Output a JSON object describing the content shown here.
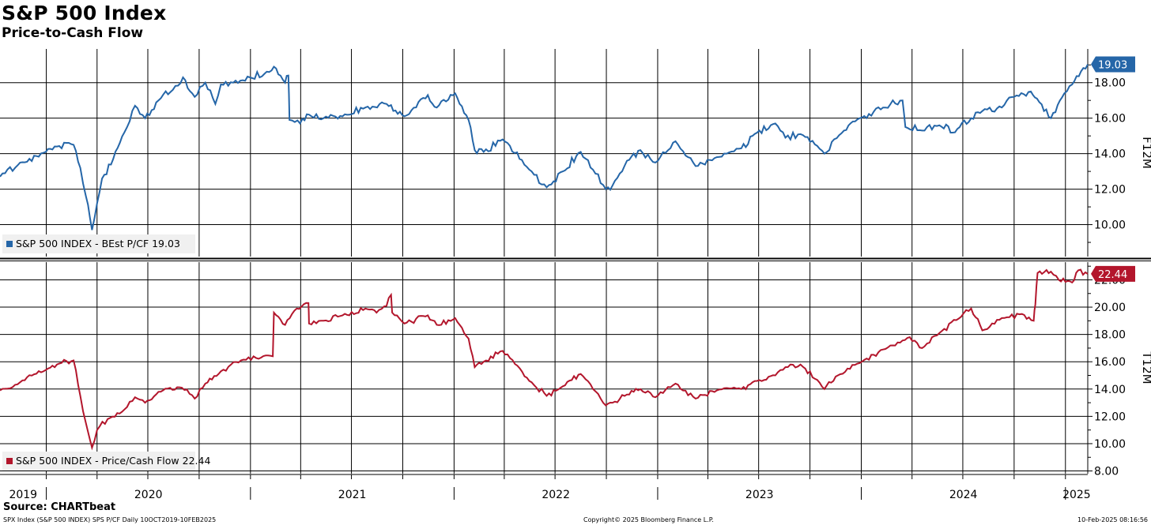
{
  "header": {
    "title": "S&P 500 Index",
    "subtitle": "Price-to-Cash Flow"
  },
  "footer": {
    "source": "Source: CHARTbeat",
    "left": "SPX Index (S&P 500 INDEX) SPS P/CF  Daily 10OCT2019-10FEB2025",
    "center": "Copyright© 2025 Bloomberg Finance L.P.",
    "right": "10-Feb-2025 08:16:56"
  },
  "chart_data": [
    {
      "type": "line",
      "panel": "top",
      "ylabel": "F12M",
      "ylim": [
        8.2,
        19.9
      ],
      "yticks": [
        "10.00",
        "12.00",
        "14.00",
        "16.00",
        "18.00"
      ],
      "color": "#2566a8",
      "legend": "S&P 500 INDEX - BEst P/CF 19.03",
      "last_value_label": "19.03",
      "series": [
        {
          "name": "S&P 500 INDEX - BEst P/CF",
          "points": [
            [
              "2019-10-10",
              12.7
            ],
            [
              "2019-11-15",
              13.5
            ],
            [
              "2019-12-31",
              14.1
            ],
            [
              "2020-01-20",
              14.4
            ],
            [
              "2020-02-19",
              14.5
            ],
            [
              "2020-03-02",
              13.2
            ],
            [
              "2020-03-12",
              11.6
            ],
            [
              "2020-03-23",
              9.7
            ],
            [
              "2020-04-01",
              11.2
            ],
            [
              "2020-04-10",
              12.6
            ],
            [
              "2020-04-30",
              13.7
            ],
            [
              "2020-05-20",
              15.2
            ],
            [
              "2020-06-08",
              16.7
            ],
            [
              "2020-06-26",
              16.0
            ],
            [
              "2020-07-20",
              17.0
            ],
            [
              "2020-08-15",
              17.6
            ],
            [
              "2020-09-02",
              18.3
            ],
            [
              "2020-09-23",
              17.2
            ],
            [
              "2020-10-12",
              18.0
            ],
            [
              "2020-10-30",
              16.8
            ],
            [
              "2020-11-09",
              17.9
            ],
            [
              "2020-12-01",
              18.0
            ],
            [
              "2020-12-31",
              18.3
            ],
            [
              "2021-01-26",
              18.5
            ],
            [
              "2021-02-12",
              18.9
            ],
            [
              "2021-03-04",
              18.0
            ],
            [
              "2021-03-10",
              18.4
            ],
            [
              "2021-03-12",
              15.9
            ],
            [
              "2021-03-31",
              15.7
            ],
            [
              "2021-04-16",
              16.2
            ],
            [
              "2021-05-12",
              16.0
            ],
            [
              "2021-06-15",
              16.1
            ],
            [
              "2021-07-26",
              16.6
            ],
            [
              "2021-09-02",
              16.8
            ],
            [
              "2021-10-04",
              16.1
            ],
            [
              "2021-11-15",
              17.3
            ],
            [
              "2021-12-01",
              16.6
            ],
            [
              "2022-01-03",
              17.4
            ],
            [
              "2022-01-27",
              15.9
            ],
            [
              "2022-02-07",
              14.2
            ],
            [
              "2022-02-23",
              14.1
            ],
            [
              "2022-03-29",
              14.8
            ],
            [
              "2022-05-20",
              13.0
            ],
            [
              "2022-06-16",
              12.1
            ],
            [
              "2022-07-15",
              13.0
            ],
            [
              "2022-08-16",
              14.1
            ],
            [
              "2022-09-07",
              13.1
            ],
            [
              "2022-09-30",
              12.0
            ],
            [
              "2022-10-12",
              12.2
            ],
            [
              "2022-11-07",
              13.6
            ],
            [
              "2022-12-01",
              14.2
            ],
            [
              "2022-12-28",
              13.5
            ],
            [
              "2023-02-02",
              14.7
            ],
            [
              "2023-03-10",
              13.3
            ],
            [
              "2023-04-17",
              13.8
            ],
            [
              "2023-05-31",
              14.3
            ],
            [
              "2023-06-20",
              15.0
            ],
            [
              "2023-07-31",
              15.7
            ],
            [
              "2023-08-18",
              14.9
            ],
            [
              "2023-09-14",
              15.1
            ],
            [
              "2023-10-27",
              14.0
            ],
            [
              "2023-12-01",
              15.3
            ],
            [
              "2023-12-29",
              16.0
            ],
            [
              "2024-02-09",
              16.6
            ],
            [
              "2024-03-15",
              17.0
            ],
            [
              "2024-03-20",
              15.5
            ],
            [
              "2024-04-19",
              15.3
            ],
            [
              "2024-05-20",
              15.6
            ],
            [
              "2024-06-17",
              15.2
            ],
            [
              "2024-07-16",
              16.0
            ],
            [
              "2024-08-05",
              16.4
            ],
            [
              "2024-09-09",
              16.6
            ],
            [
              "2024-10-01",
              17.2
            ],
            [
              "2024-10-31",
              17.5
            ],
            [
              "2024-11-11",
              17.1
            ],
            [
              "2024-12-06",
              16.0
            ],
            [
              "2024-12-30",
              17.4
            ],
            [
              "2025-01-13",
              17.9
            ],
            [
              "2025-02-10",
              19.03
            ]
          ]
        }
      ]
    },
    {
      "type": "line",
      "panel": "bottom",
      "ylabel": "T12M",
      "ylim": [
        7.8,
        23.3
      ],
      "yticks": [
        "8.00",
        "10.00",
        "12.00",
        "14.00",
        "16.00",
        "18.00",
        "20.00",
        "22.00"
      ],
      "color": "#b3162c",
      "legend": "S&P 500 INDEX - Price/Cash Flow 22.44",
      "last_value_label": "22.44",
      "series": [
        {
          "name": "S&P 500 INDEX - Price/Cash Flow",
          "points": [
            [
              "2019-10-10",
              13.9
            ],
            [
              "2019-11-15",
              14.5
            ],
            [
              "2019-12-31",
              15.4
            ],
            [
              "2020-01-20",
              15.8
            ],
            [
              "2020-02-19",
              16.1
            ],
            [
              "2020-03-02",
              13.5
            ],
            [
              "2020-03-12",
              11.5
            ],
            [
              "2020-03-23",
              9.7
            ],
            [
              "2020-04-01",
              11.0
            ],
            [
              "2020-04-20",
              11.8
            ],
            [
              "2020-05-20",
              12.5
            ],
            [
              "2020-06-08",
              13.4
            ],
            [
              "2020-06-26",
              13.0
            ],
            [
              "2020-07-20",
              13.8
            ],
            [
              "2020-08-31",
              14.1
            ],
            [
              "2020-09-23",
              13.3
            ],
            [
              "2020-10-12",
              14.4
            ],
            [
              "2020-11-09",
              15.3
            ],
            [
              "2020-12-15",
              16.1
            ],
            [
              "2021-01-20",
              16.3
            ],
            [
              "2021-02-10",
              16.4
            ],
            [
              "2021-02-12",
              19.6
            ],
            [
              "2021-03-04",
              18.7
            ],
            [
              "2021-03-25",
              19.9
            ],
            [
              "2021-04-15",
              20.3
            ],
            [
              "2021-04-16",
              18.8
            ],
            [
              "2021-05-12",
              19.0
            ],
            [
              "2021-06-15",
              19.4
            ],
            [
              "2021-07-26",
              19.9
            ],
            [
              "2021-08-15",
              19.6
            ],
            [
              "2021-09-02",
              20.1
            ],
            [
              "2021-09-10",
              20.9
            ],
            [
              "2021-09-12",
              19.6
            ],
            [
              "2021-10-04",
              18.8
            ],
            [
              "2021-11-15",
              19.4
            ],
            [
              "2021-12-01",
              18.7
            ],
            [
              "2022-01-03",
              19.2
            ],
            [
              "2022-01-27",
              17.7
            ],
            [
              "2022-02-07",
              15.6
            ],
            [
              "2022-02-23",
              16.0
            ],
            [
              "2022-03-29",
              16.8
            ],
            [
              "2022-04-29",
              15.5
            ],
            [
              "2022-05-20",
              14.5
            ],
            [
              "2022-06-16",
              13.5
            ],
            [
              "2022-07-15",
              14.2
            ],
            [
              "2022-08-16",
              15.1
            ],
            [
              "2022-09-07",
              14.0
            ],
            [
              "2022-09-30",
              12.8
            ],
            [
              "2022-10-12",
              13.0
            ],
            [
              "2022-11-07",
              13.6
            ],
            [
              "2022-12-01",
              14.0
            ],
            [
              "2022-12-28",
              13.4
            ],
            [
              "2023-02-02",
              14.4
            ],
            [
              "2023-03-10",
              13.3
            ],
            [
              "2023-04-17",
              13.9
            ],
            [
              "2023-05-31",
              14.0
            ],
            [
              "2023-06-20",
              14.5
            ],
            [
              "2023-07-31",
              15.0
            ],
            [
              "2023-08-18",
              15.6
            ],
            [
              "2023-09-14",
              15.8
            ],
            [
              "2023-10-27",
              14.0
            ],
            [
              "2023-11-20",
              15.0
            ],
            [
              "2023-12-29",
              15.9
            ],
            [
              "2024-02-09",
              16.9
            ],
            [
              "2024-03-28",
              17.8
            ],
            [
              "2024-04-19",
              17.0
            ],
            [
              "2024-05-20",
              18.1
            ],
            [
              "2024-06-28",
              19.3
            ],
            [
              "2024-07-16",
              19.9
            ],
            [
              "2024-08-05",
              18.3
            ],
            [
              "2024-09-09",
              19.2
            ],
            [
              "2024-10-15",
              19.5
            ],
            [
              "2024-11-05",
              19.0
            ],
            [
              "2024-11-08",
              20.2
            ],
            [
              "2024-11-12",
              22.5
            ],
            [
              "2024-12-06",
              22.6
            ],
            [
              "2024-12-20",
              22.0
            ],
            [
              "2025-01-13",
              21.8
            ],
            [
              "2025-01-24",
              22.7
            ],
            [
              "2025-02-10",
              22.44
            ]
          ]
        }
      ]
    }
  ],
  "x_axis": {
    "start": "2019-10-10",
    "end": "2025-02-10",
    "year_labels": [
      "2019",
      "2020",
      "2021",
      "2022",
      "2023",
      "2024",
      "2025"
    ]
  }
}
